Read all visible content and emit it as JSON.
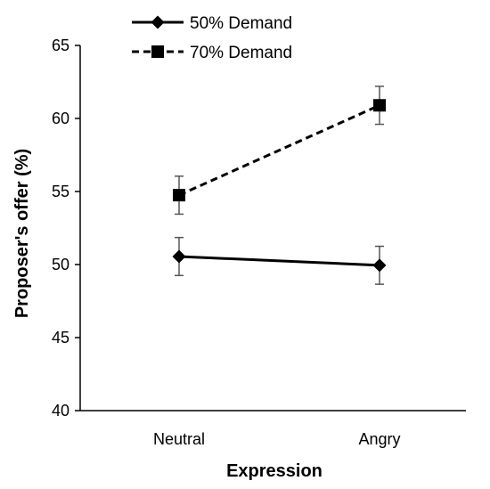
{
  "chart_data": {
    "type": "line",
    "title": "",
    "xlabel": "Expression",
    "ylabel": "Proposer's offer (%)",
    "categories": [
      "Neutral",
      "Angry"
    ],
    "ylim": [
      40,
      65
    ],
    "yticks": [
      40,
      45,
      50,
      55,
      60,
      65
    ],
    "grid": false,
    "legend_position": "top-left",
    "series": [
      {
        "name": "50% Demand",
        "values": [
          50.55,
          49.95
        ],
        "errors": [
          1.3,
          1.3
        ],
        "marker": "diamond",
        "line_style": "solid",
        "color": "#000000"
      },
      {
        "name": "70% Demand",
        "values": [
          54.75,
          60.9
        ],
        "errors": [
          1.3,
          1.3
        ],
        "marker": "square",
        "line_style": "dashed",
        "color": "#000000"
      }
    ]
  }
}
